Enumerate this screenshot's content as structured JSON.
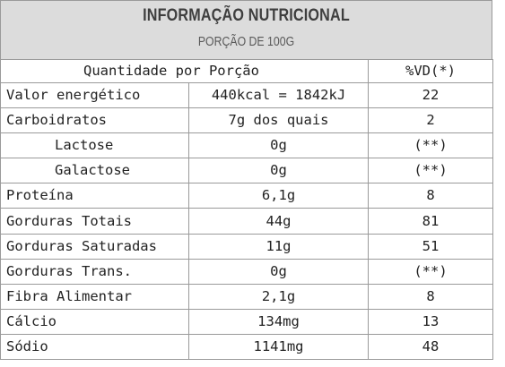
{
  "header": {
    "title": "INFORMAÇÃO NUTRICIONAL",
    "subtitle": "PORÇÃO DE 100G"
  },
  "table": {
    "columns": {
      "quantity": "Quantidade por Porção",
      "dv": "%VD(*)"
    },
    "rows": [
      {
        "name": "Valor energético",
        "amount": "440kcal = 1842kJ",
        "dv": "22",
        "indent": false
      },
      {
        "name": "Carboidratos",
        "amount": "7g dos quais",
        "dv": "2",
        "indent": false
      },
      {
        "name": "Lactose",
        "amount": "0g",
        "dv": "(**)",
        "indent": true
      },
      {
        "name": "Galactose",
        "amount": "0g",
        "dv": "(**)",
        "indent": true
      },
      {
        "name": "Proteína",
        "amount": "6,1g",
        "dv": "8",
        "indent": false
      },
      {
        "name": "Gorduras Totais",
        "amount": "44g",
        "dv": "81",
        "indent": false
      },
      {
        "name": "Gorduras Saturadas",
        "amount": "11g",
        "dv": "51",
        "indent": false
      },
      {
        "name": "Gorduras Trans.",
        "amount": "0g",
        "dv": "(**)",
        "indent": false
      },
      {
        "name": "Fibra Alimentar",
        "amount": "2,1g",
        "dv": "8",
        "indent": false
      },
      {
        "name": "Cálcio",
        "amount": "134mg",
        "dv": "13",
        "indent": false
      },
      {
        "name": "Sódio",
        "amount": "1141mg",
        "dv": "48",
        "indent": false
      }
    ]
  }
}
